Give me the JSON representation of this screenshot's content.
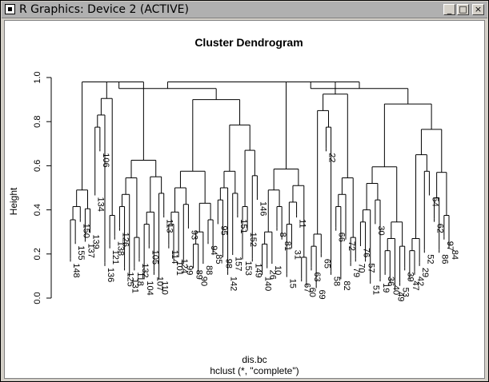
{
  "window": {
    "title": "R Graphics: Device 2 (ACTIVE)",
    "buttons": [
      {
        "name": "minimize-button",
        "glyph": "_"
      },
      {
        "name": "maximize-button",
        "glyph": "□"
      },
      {
        "name": "close-button",
        "glyph": "×"
      }
    ]
  },
  "chart_data": {
    "type": "dendrogram",
    "title": "Cluster Dendrogram",
    "ylabel": "Height",
    "xlabel": "dis.bc",
    "sublabel": "hclust (*, \"complete\")",
    "ylim": [
      0,
      1
    ],
    "yticks": [
      "0.0",
      "0.2",
      "0.4",
      "0.6",
      "0.8",
      "1.0"
    ],
    "grid": false,
    "leaves": [
      {
        "label": "148",
        "h": 0.18
      },
      {
        "label": "155",
        "h": 0.26
      },
      {
        "label": "150",
        "h": 0.36
      },
      {
        "label": "137",
        "h": 0.27
      },
      {
        "label": "139",
        "h": 0.31
      },
      {
        "label": "134",
        "h": 0.48
      },
      {
        "label": "106",
        "h": 0.68
      },
      {
        "label": "136",
        "h": 0.16
      },
      {
        "label": "121",
        "h": 0.24
      },
      {
        "label": "138",
        "h": 0.28
      },
      {
        "label": "126",
        "h": 0.32
      },
      {
        "label": "125",
        "h": 0.14
      },
      {
        "label": "131",
        "h": 0.11
      },
      {
        "label": "118",
        "h": 0.14
      },
      {
        "label": "132",
        "h": 0.18
      },
      {
        "label": "104",
        "h": 0.1
      },
      {
        "label": "105",
        "h": 0.24
      },
      {
        "label": "107",
        "h": 0.12
      },
      {
        "label": "110",
        "h": 0.1
      },
      {
        "label": "113",
        "h": 0.38
      },
      {
        "label": "114",
        "h": 0.24
      },
      {
        "label": "101",
        "h": 0.19
      },
      {
        "label": "124",
        "h": 0.2
      },
      {
        "label": "99",
        "h": 0.17
      },
      {
        "label": "93",
        "h": 0.33
      },
      {
        "label": "89",
        "h": 0.15
      },
      {
        "label": "90",
        "h": 0.12
      },
      {
        "label": "88",
        "h": 0.17
      },
      {
        "label": "94",
        "h": 0.26
      },
      {
        "label": "85",
        "h": 0.22
      },
      {
        "label": "95",
        "h": 0.35
      },
      {
        "label": "98",
        "h": 0.2
      },
      {
        "label": "142",
        "h": 0.12
      },
      {
        "label": "157",
        "h": 0.21
      },
      {
        "label": "151",
        "h": 0.38
      },
      {
        "label": "153",
        "h": 0.19
      },
      {
        "label": "152",
        "h": 0.32
      },
      {
        "label": "149",
        "h": 0.18
      },
      {
        "label": "146",
        "h": 0.46
      },
      {
        "label": "140",
        "h": 0.12
      },
      {
        "label": "26",
        "h": 0.15
      },
      {
        "label": "10",
        "h": 0.17
      },
      {
        "label": "8",
        "h": 0.32
      },
      {
        "label": "81",
        "h": 0.28
      },
      {
        "label": "15",
        "h": 0.11
      },
      {
        "label": "31",
        "h": 0.24
      },
      {
        "label": "11",
        "h": 0.38
      },
      {
        "label": "67",
        "h": 0.09
      },
      {
        "label": "60",
        "h": 0.07
      },
      {
        "label": "63",
        "h": 0.14
      },
      {
        "label": "69",
        "h": 0.06
      },
      {
        "label": "65",
        "h": 0.2
      },
      {
        "label": "22",
        "h": 0.68
      },
      {
        "label": "58",
        "h": 0.12
      },
      {
        "label": "66",
        "h": 0.32
      },
      {
        "label": "82",
        "h": 0.1
      },
      {
        "label": "72",
        "h": 0.28
      },
      {
        "label": "79",
        "h": 0.16
      },
      {
        "label": "70",
        "h": 0.18
      },
      {
        "label": "76",
        "h": 0.25
      },
      {
        "label": "57",
        "h": 0.18
      },
      {
        "label": "51",
        "h": 0.08
      },
      {
        "label": "30",
        "h": 0.35
      },
      {
        "label": "19",
        "h": 0.09
      },
      {
        "label": "36",
        "h": 0.12
      },
      {
        "label": "40",
        "h": 0.08
      },
      {
        "label": "49",
        "h": 0.05
      },
      {
        "label": "53",
        "h": 0.07
      },
      {
        "label": "39",
        "h": 0.14
      },
      {
        "label": "47",
        "h": 0.1
      },
      {
        "label": "42",
        "h": 0.12
      },
      {
        "label": "29",
        "h": 0.16
      },
      {
        "label": "52",
        "h": 0.22
      },
      {
        "label": "54",
        "h": 0.48
      },
      {
        "label": "62",
        "h": 0.36
      },
      {
        "label": "86",
        "h": 0.22
      },
      {
        "label": "97",
        "h": 0.28
      },
      {
        "label": "84",
        "h": 0.24
      }
    ]
  }
}
